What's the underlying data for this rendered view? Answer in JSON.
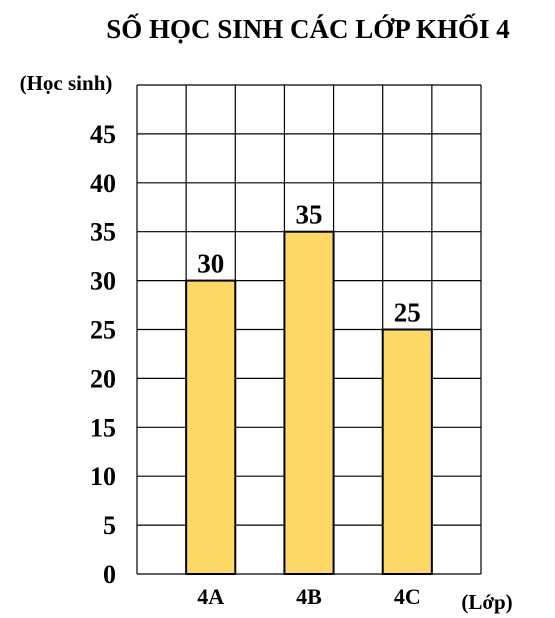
{
  "chart_data": {
    "type": "bar",
    "title": "SỐ HỌC SINH CÁC LỚP KHỐI 4",
    "ylabel": "(Học sinh)",
    "xlabel": "(Lớp)",
    "categories": [
      "4A",
      "4B",
      "4C"
    ],
    "values": [
      30,
      35,
      25
    ],
    "data_labels": [
      "30",
      "35",
      "25"
    ],
    "ylim": [
      0,
      50
    ],
    "yticks": [
      0,
      5,
      10,
      15,
      20,
      25,
      30,
      35,
      40,
      45
    ],
    "ytick_labels": [
      "0",
      "5",
      "10",
      "15",
      "20",
      "25",
      "30",
      "35",
      "40",
      "45"
    ],
    "grid": true,
    "bar_color": "#FFD966",
    "bar_edge_color": "#000000",
    "grid_color": "#000000"
  }
}
